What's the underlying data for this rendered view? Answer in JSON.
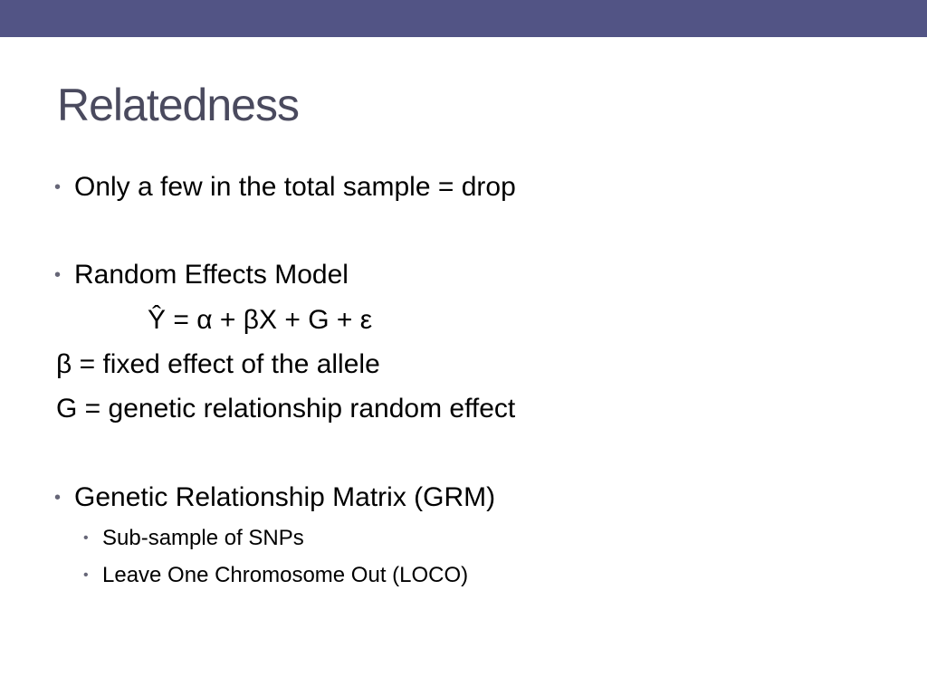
{
  "colors": {
    "top_bar": "#525485",
    "title": "#4a4a5e",
    "body_text": "#000000",
    "bullet": "#666677"
  },
  "slide": {
    "title": "Relatedness",
    "bullet_glyph": "•",
    "items": [
      {
        "text": "Only a few in the total sample = drop"
      },
      {
        "text": "Random Effects Model"
      },
      {
        "text": "Ŷ = α + βX + G + ε"
      },
      {
        "text": "β = fixed effect of the allele"
      },
      {
        "text": "G = genetic relationship random effect"
      },
      {
        "text": "Genetic Relationship Matrix (GRM)"
      },
      {
        "text": "Sub-sample of SNPs"
      },
      {
        "text": "Leave One Chromosome Out (LOCO)"
      }
    ]
  }
}
